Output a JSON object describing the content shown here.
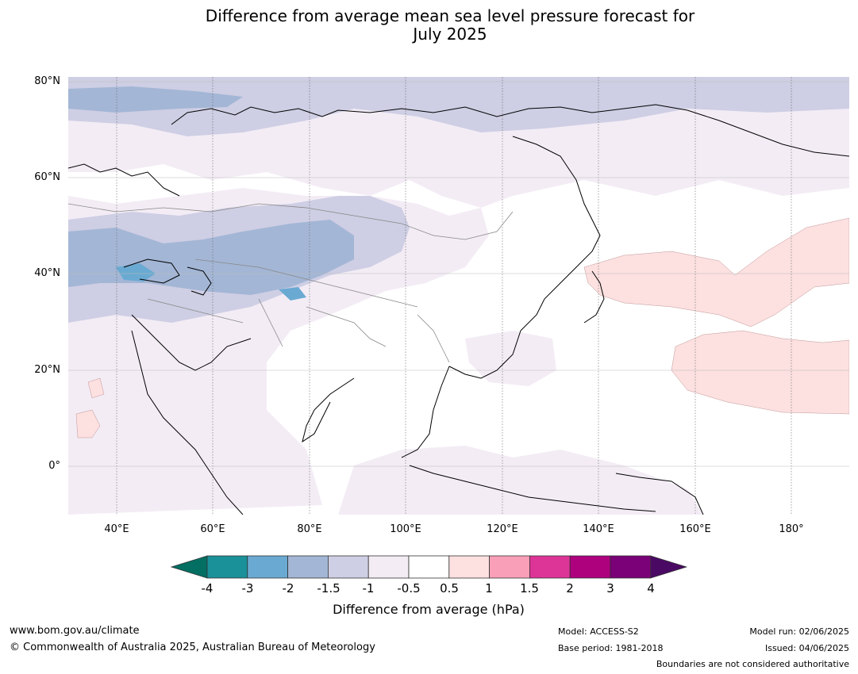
{
  "title_line1": "Difference from average mean sea level pressure forecast for",
  "title_line2": "July 2025",
  "map": {
    "lon_range": [
      30,
      192
    ],
    "lat_range": [
      -10,
      81
    ],
    "lat_ticks": [
      {
        "value": 80,
        "label": "80°N"
      },
      {
        "value": 60,
        "label": "60°N"
      },
      {
        "value": 40,
        "label": "40°N"
      },
      {
        "value": 20,
        "label": "20°N"
      },
      {
        "value": 0,
        "label": "0°"
      }
    ],
    "lon_ticks": [
      {
        "value": 40,
        "label": "40°E"
      },
      {
        "value": 60,
        "label": "60°E"
      },
      {
        "value": 80,
        "label": "80°E"
      },
      {
        "value": 100,
        "label": "100°E"
      },
      {
        "value": 120,
        "label": "120°E"
      },
      {
        "value": 140,
        "label": "140°E"
      },
      {
        "value": 160,
        "label": "160°E"
      },
      {
        "value": 180,
        "label": "180°"
      }
    ]
  },
  "colorbar": {
    "under_color": "#036e62",
    "over_color": "#4a0a63",
    "bins": [
      {
        "color": "#1a9199"
      },
      {
        "color": "#6aaad2"
      },
      {
        "color": "#a3b6d5"
      },
      {
        "color": "#ceceE4"
      },
      {
        "color": "#f3ecf5"
      },
      {
        "color": "#ffffff"
      },
      {
        "color": "#fde0e0"
      },
      {
        "color": "#f9a0b8"
      },
      {
        "color": "#dd3497"
      },
      {
        "color": "#ae017e"
      },
      {
        "color": "#7a0177"
      }
    ],
    "ticks": [
      "-4",
      "-3",
      "-2",
      "-1.5",
      "-1",
      "-0.5",
      "0.5",
      "1",
      "1.5",
      "2",
      "3",
      "4"
    ],
    "label": "Difference from average (hPa)"
  },
  "footer": {
    "website": "www.bom.gov.au/climate",
    "copyright": "© Commonwealth of Australia 2025, Australian Bureau of Meteorology",
    "model": "Model: ACCESS-S2",
    "base_period": "Base period: 1981-2018",
    "model_run": "Model run: 02/06/2025",
    "issued": "Issued: 04/06/2025",
    "disclaimer": "Boundaries are not considered authoritative"
  }
}
